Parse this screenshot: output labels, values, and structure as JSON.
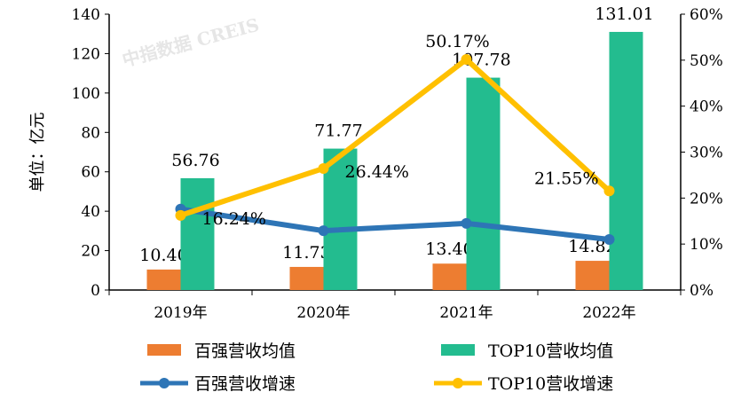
{
  "chart_data": {
    "type": "bar+line",
    "categories": [
      "2019年",
      "2020年",
      "2021年",
      "2022年"
    ],
    "ylabel": "单位：亿元",
    "ylim": [
      0,
      140
    ],
    "yticks": [
      0,
      20,
      40,
      60,
      80,
      100,
      120,
      140
    ],
    "y2lim": [
      0,
      60
    ],
    "y2ticks": [
      "0%",
      "10%",
      "20%",
      "30%",
      "40%",
      "50%",
      "60%"
    ],
    "grid": false,
    "legend": "bottom",
    "watermark": "中指数据 CREIS",
    "series": [
      {
        "name": "百强营收均值",
        "type": "bar",
        "axis": "left",
        "color": "#ED7D31",
        "values": [
          10.4,
          11.73,
          13.4,
          14.82
        ],
        "labels": [
          "10.40",
          "11.73",
          "13.40",
          "14.82"
        ]
      },
      {
        "name": "TOP10营收均值",
        "type": "bar",
        "axis": "left",
        "color": "#23BC8F",
        "values": [
          56.76,
          71.77,
          107.78,
          131.01
        ],
        "labels": [
          "56.76",
          "71.77",
          "107.78",
          "131.01"
        ]
      },
      {
        "name": "百强营收增速",
        "type": "line",
        "axis": "right",
        "color": "#2E75B6",
        "values": [
          17.6,
          12.9,
          14.5,
          11.0
        ],
        "labels": []
      },
      {
        "name": "TOP10营收增速",
        "type": "line",
        "axis": "right",
        "color": "#FFC000",
        "values": [
          16.24,
          26.44,
          50.17,
          21.55
        ],
        "labels": [
          "16.24%",
          "26.44%",
          "50.17%",
          "21.55%"
        ]
      }
    ]
  }
}
